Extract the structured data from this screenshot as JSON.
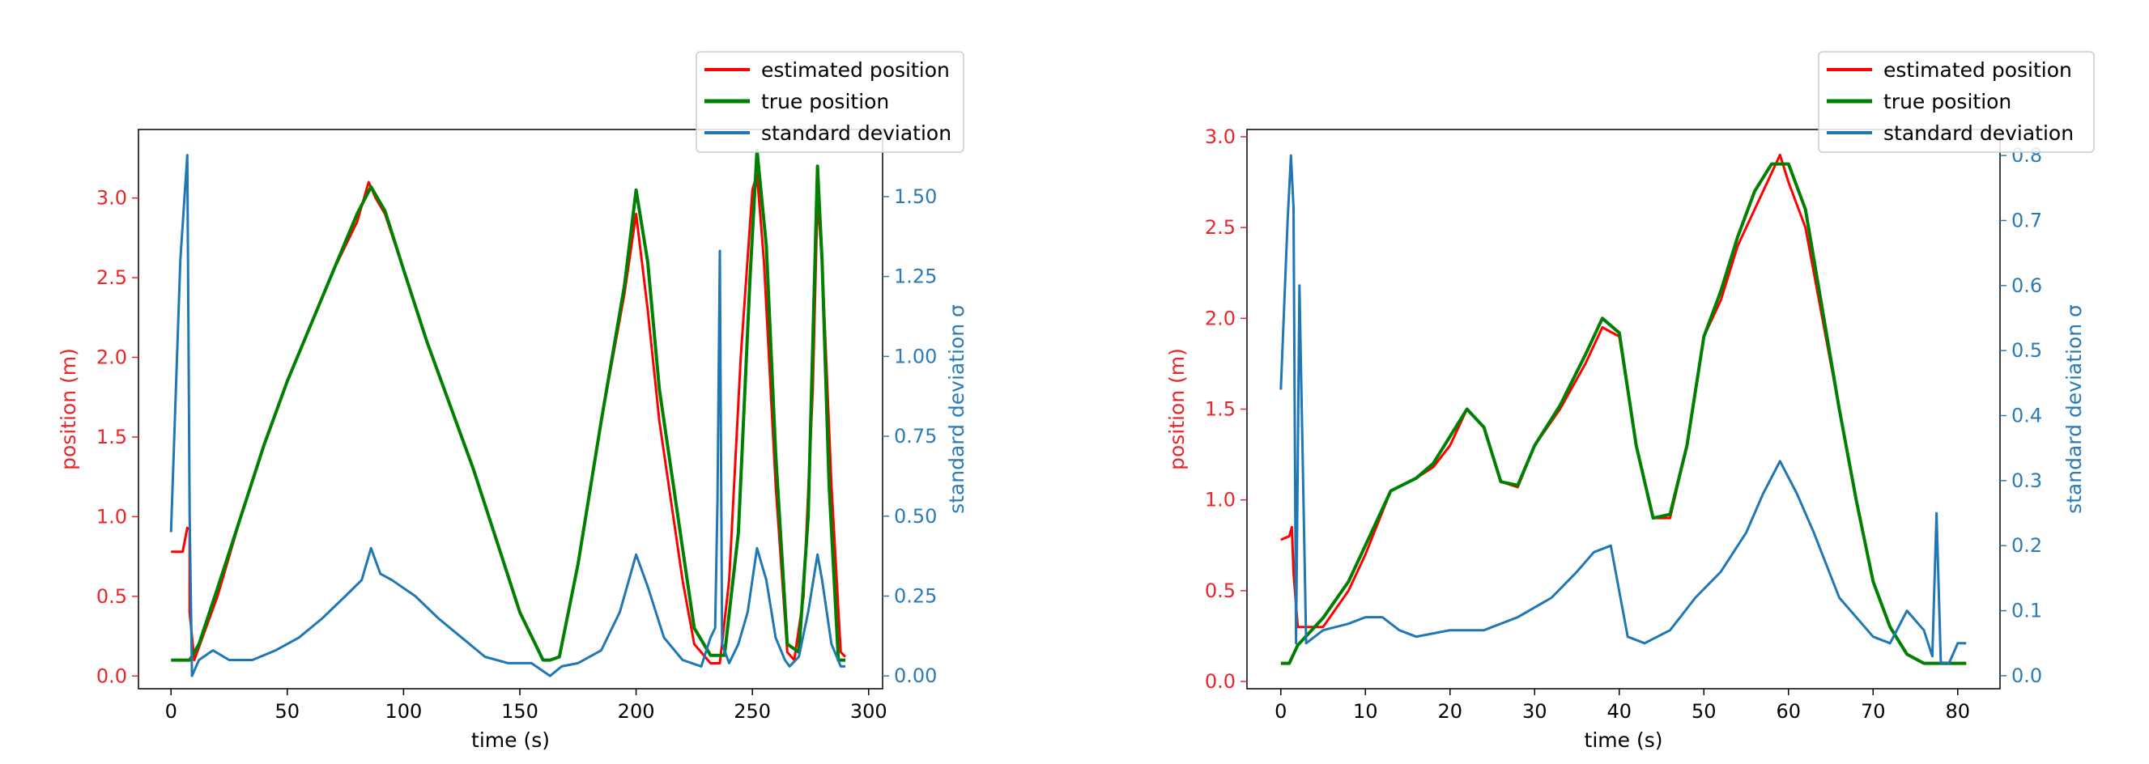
{
  "colors": {
    "estimated": "#ff0000",
    "true": "#008000",
    "std": "#1f77b4",
    "left_axis": "#e8262b",
    "right_axis": "#2b7bb9"
  },
  "chart_data": [
    {
      "type": "line",
      "xlabel": "time (s)",
      "ylabel": "position (m)",
      "y2label": "standard deviation σ",
      "xlim": [
        -14,
        306
      ],
      "ylim": [
        -0.08,
        3.43
      ],
      "y2lim": [
        -0.04,
        1.71
      ],
      "xticks": [
        0,
        50,
        100,
        150,
        200,
        250,
        300
      ],
      "yticks": [
        0.0,
        0.5,
        1.0,
        1.5,
        2.0,
        2.5,
        3.0
      ],
      "y2ticks": [
        0.0,
        0.25,
        0.5,
        0.75,
        1.0,
        1.25,
        1.5
      ],
      "grid": false,
      "legend": {
        "placement": "top-right",
        "entries": [
          "estimated position",
          "true position",
          "standard deviation"
        ]
      },
      "series": [
        {
          "name": "estimated position",
          "axis": "left",
          "x": [
            0,
            5,
            7,
            8,
            8,
            10,
            20,
            30,
            40,
            50,
            60,
            70,
            80,
            85,
            88,
            92,
            100,
            110,
            120,
            130,
            140,
            150,
            160,
            163,
            167,
            175,
            185,
            195,
            200,
            205,
            210,
            220,
            225,
            232,
            236,
            240,
            245,
            250,
            252,
            255,
            260,
            265,
            268,
            272,
            276,
            278,
            280,
            284,
            288,
            290
          ],
          "y": [
            0.78,
            0.78,
            0.93,
            0.92,
            0.4,
            0.1,
            0.5,
            1.0,
            1.45,
            1.85,
            2.2,
            2.55,
            2.85,
            3.1,
            3.0,
            2.9,
            2.55,
            2.1,
            1.7,
            1.3,
            0.85,
            0.4,
            0.1,
            0.1,
            0.12,
            0.7,
            1.6,
            2.4,
            2.9,
            2.3,
            1.6,
            0.6,
            0.2,
            0.08,
            0.08,
            0.6,
            2.0,
            3.05,
            3.15,
            2.6,
            1.2,
            0.15,
            0.1,
            0.5,
            1.8,
            3.0,
            2.6,
            1.2,
            0.15,
            0.12
          ]
        },
        {
          "name": "true position",
          "axis": "left",
          "x": [
            0,
            8,
            12,
            20,
            30,
            40,
            50,
            60,
            70,
            80,
            86,
            92,
            100,
            110,
            120,
            130,
            140,
            150,
            160,
            163,
            167,
            175,
            185,
            195,
            200,
            205,
            210,
            220,
            225,
            232,
            238,
            244,
            249,
            252,
            256,
            260,
            265,
            270,
            274,
            278,
            280,
            283,
            287,
            290
          ],
          "y": [
            0.1,
            0.1,
            0.2,
            0.55,
            1.0,
            1.45,
            1.85,
            2.2,
            2.55,
            2.9,
            3.07,
            2.92,
            2.55,
            2.1,
            1.7,
            1.3,
            0.85,
            0.4,
            0.1,
            0.1,
            0.12,
            0.7,
            1.6,
            2.45,
            3.05,
            2.6,
            1.8,
            0.8,
            0.3,
            0.13,
            0.13,
            0.9,
            2.5,
            3.3,
            2.7,
            1.4,
            0.2,
            0.15,
            1.0,
            3.2,
            2.6,
            1.2,
            0.1,
            0.1
          ]
        },
        {
          "name": "standard deviation",
          "axis": "right",
          "x": [
            0,
            4,
            7,
            7.5,
            8,
            9,
            12,
            18,
            25,
            35,
            45,
            55,
            65,
            75,
            82,
            86,
            90,
            95,
            105,
            115,
            125,
            135,
            145,
            155,
            163,
            168,
            175,
            185,
            193,
            200,
            205,
            212,
            220,
            228,
            232,
            234,
            235,
            236,
            237,
            240,
            244,
            248,
            252,
            256,
            260,
            264,
            266,
            270,
            274,
            278,
            280,
            284,
            288,
            290
          ],
          "y": [
            0.45,
            1.3,
            1.63,
            1.1,
            0.5,
            0.0,
            0.05,
            0.08,
            0.05,
            0.05,
            0.08,
            0.12,
            0.18,
            0.25,
            0.3,
            0.4,
            0.32,
            0.3,
            0.25,
            0.18,
            0.12,
            0.06,
            0.04,
            0.04,
            0.0,
            0.03,
            0.04,
            0.08,
            0.2,
            0.38,
            0.28,
            0.12,
            0.05,
            0.03,
            0.12,
            0.15,
            0.55,
            1.33,
            0.1,
            0.04,
            0.1,
            0.2,
            0.4,
            0.3,
            0.12,
            0.05,
            0.03,
            0.06,
            0.2,
            0.38,
            0.3,
            0.1,
            0.03,
            0.03
          ]
        }
      ]
    },
    {
      "type": "line",
      "xlabel": "time (s)",
      "ylabel": "position (m)",
      "y2label": "standard deviation σ",
      "xlim": [
        -4,
        85
      ],
      "ylim": [
        -0.04,
        3.04
      ],
      "y2lim": [
        -0.02,
        0.84
      ],
      "xticks": [
        0,
        10,
        20,
        30,
        40,
        50,
        60,
        70,
        80
      ],
      "yticks": [
        0.0,
        0.5,
        1.0,
        1.5,
        2.0,
        2.5,
        3.0
      ],
      "y2ticks": [
        0.0,
        0.1,
        0.2,
        0.3,
        0.4,
        0.5,
        0.6,
        0.7,
        0.8
      ],
      "grid": false,
      "legend": {
        "placement": "top-right",
        "entries": [
          "estimated position",
          "true position",
          "standard deviation"
        ]
      },
      "series": [
        {
          "name": "estimated position",
          "axis": "left",
          "x": [
            0,
            1,
            1.3,
            1.5,
            2,
            5,
            8,
            10,
            13,
            16,
            18,
            20,
            22,
            24,
            26,
            28,
            30,
            33,
            36,
            38,
            40,
            42,
            44,
            46,
            48,
            50,
            52,
            54,
            56,
            58,
            59,
            60,
            62,
            64,
            66,
            68,
            70,
            72,
            74,
            76,
            78,
            80,
            81
          ],
          "y": [
            0.78,
            0.8,
            0.85,
            0.6,
            0.3,
            0.3,
            0.5,
            0.7,
            1.05,
            1.12,
            1.18,
            1.3,
            1.5,
            1.4,
            1.1,
            1.07,
            1.3,
            1.5,
            1.75,
            1.95,
            1.9,
            1.3,
            0.9,
            0.9,
            1.3,
            1.9,
            2.1,
            2.4,
            2.6,
            2.8,
            2.9,
            2.75,
            2.5,
            2.0,
            1.5,
            1.0,
            0.55,
            0.3,
            0.15,
            0.1,
            0.1,
            0.1,
            0.1
          ]
        },
        {
          "name": "true position",
          "axis": "left",
          "x": [
            0,
            1,
            2,
            5,
            8,
            10,
            13,
            16,
            18,
            20,
            22,
            24,
            26,
            28,
            30,
            33,
            36,
            38,
            40,
            42,
            44,
            46,
            48,
            50,
            52,
            54,
            56,
            58,
            60,
            62,
            64,
            66,
            68,
            70,
            72,
            74,
            76,
            78,
            80,
            81
          ],
          "y": [
            0.1,
            0.1,
            0.2,
            0.35,
            0.55,
            0.75,
            1.05,
            1.12,
            1.2,
            1.35,
            1.5,
            1.4,
            1.1,
            1.08,
            1.3,
            1.52,
            1.8,
            2.0,
            1.92,
            1.3,
            0.9,
            0.92,
            1.3,
            1.9,
            2.15,
            2.45,
            2.7,
            2.85,
            2.85,
            2.6,
            2.05,
            1.5,
            1.0,
            0.55,
            0.3,
            0.15,
            0.1,
            0.1,
            0.1,
            0.1
          ]
        },
        {
          "name": "standard deviation",
          "axis": "right",
          "x": [
            0,
            0.8,
            1.2,
            1.5,
            1.8,
            2.2,
            3,
            5,
            8,
            10,
            12,
            14,
            16,
            20,
            24,
            28,
            32,
            35,
            37,
            39,
            41,
            43,
            46,
            49,
            52,
            55,
            57,
            59,
            61,
            63,
            66,
            70,
            72,
            74,
            76,
            77,
            77.5,
            78,
            79,
            80,
            81
          ],
          "y": [
            0.44,
            0.7,
            0.8,
            0.72,
            0.05,
            0.6,
            0.05,
            0.07,
            0.08,
            0.09,
            0.09,
            0.07,
            0.06,
            0.07,
            0.07,
            0.09,
            0.12,
            0.16,
            0.19,
            0.2,
            0.06,
            0.05,
            0.07,
            0.12,
            0.16,
            0.22,
            0.28,
            0.33,
            0.28,
            0.22,
            0.12,
            0.06,
            0.05,
            0.1,
            0.07,
            0.03,
            0.25,
            0.02,
            0.02,
            0.05,
            0.05
          ]
        }
      ]
    }
  ]
}
